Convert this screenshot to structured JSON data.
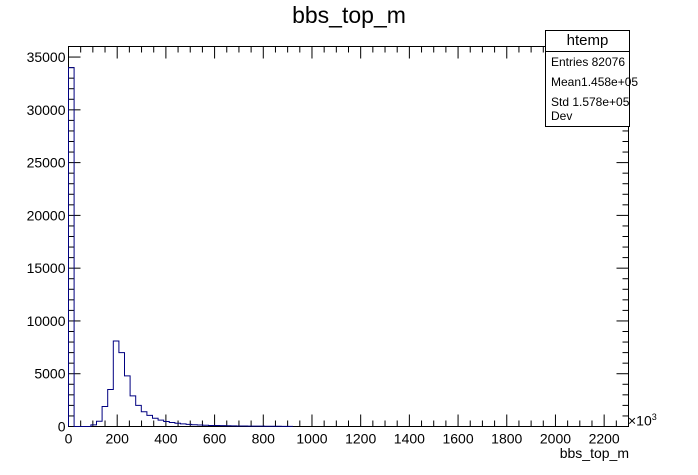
{
  "chart_data": {
    "type": "histogram",
    "title": "bbs_top_m",
    "xlabel": "bbs_top_m",
    "ylabel": "",
    "x_multiplier_label": "×10",
    "x_multiplier_exponent": "3",
    "xlim": [
      0,
      2300
    ],
    "ylim": [
      0,
      36000
    ],
    "bin_width": 23,
    "x_ticks": [
      "0",
      "200",
      "400",
      "600",
      "800",
      "1000",
      "1200",
      "1400",
      "1600",
      "1800",
      "2000",
      "2200"
    ],
    "y_ticks": [
      "0",
      "5000",
      "10000",
      "15000",
      "20000",
      "25000",
      "30000",
      "35000"
    ],
    "values": [
      34000,
      0,
      0,
      0,
      150,
      500,
      1900,
      3500,
      8100,
      7000,
      4800,
      2900,
      2000,
      1400,
      1050,
      780,
      600,
      470,
      380,
      310,
      250,
      200,
      170,
      140,
      120,
      100,
      90,
      80,
      70,
      60,
      50,
      45,
      40,
      35,
      30,
      25,
      22,
      20,
      17,
      15
    ],
    "line_color": "#000080"
  },
  "statbox": {
    "title": "htemp",
    "rows": [
      {
        "label": "Entries",
        "value": "82076"
      },
      {
        "label": "Mean",
        "value": "1.458e+05"
      },
      {
        "label": "Std Dev",
        "value": "1.578e+05"
      }
    ]
  }
}
